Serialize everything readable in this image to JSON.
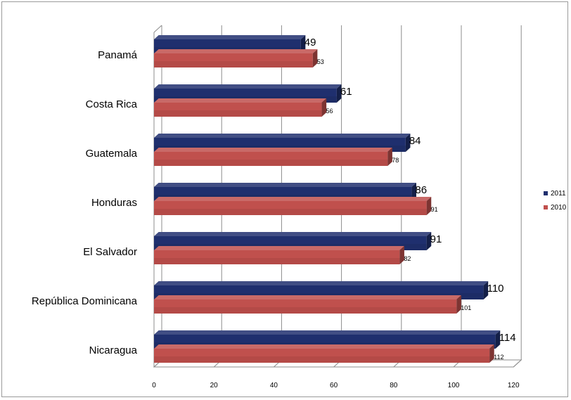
{
  "chart_data": {
    "type": "bar",
    "orientation": "horizontal",
    "style": "3d-clustered",
    "categories": [
      "Panamá",
      "Costa Rica",
      "Guatemala",
      "Honduras",
      "El Salvador",
      "República Dominicana",
      "Nicaragua"
    ],
    "series": [
      {
        "name": "2011",
        "color": "#1f2f6e",
        "values": [
          49,
          61,
          84,
          86,
          91,
          110,
          114
        ]
      },
      {
        "name": "2010",
        "color": "#c0504d",
        "values": [
          53,
          56,
          78,
          91,
          82,
          101,
          112
        ]
      }
    ],
    "xlim": [
      0,
      120
    ],
    "xticks": [
      "0",
      "20",
      "40",
      "60",
      "80",
      "100",
      "120"
    ],
    "grid": true,
    "legend_position": "right",
    "title": "",
    "xlabel": "",
    "ylabel": ""
  }
}
